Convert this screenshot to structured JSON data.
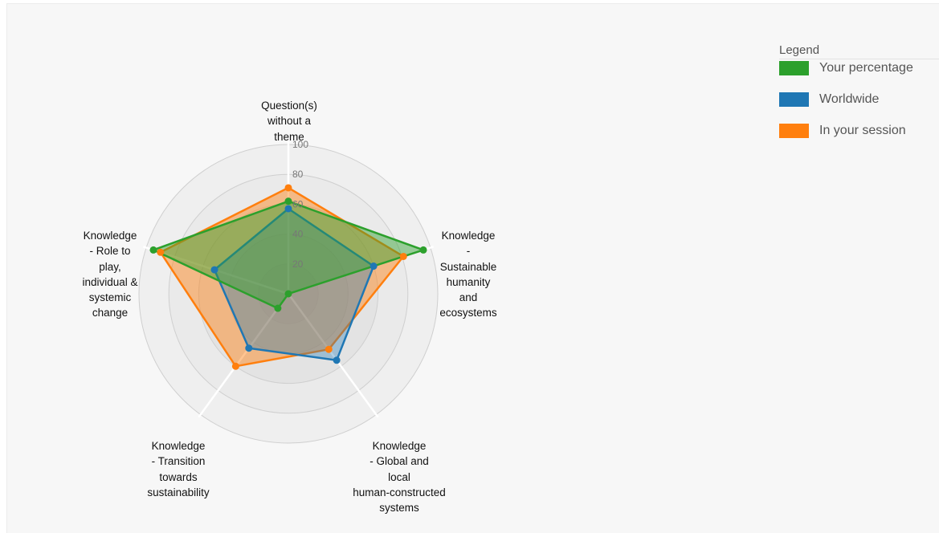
{
  "chart_data": {
    "type": "radar",
    "axes": [
      [
        "Question(s)",
        "without a",
        "theme"
      ],
      [
        "Knowledge",
        "-",
        "Sustainable",
        "humanity",
        "and",
        "ecosystems"
      ],
      [
        "Knowledge",
        "- Global and",
        "local",
        "human-constructed",
        "systems"
      ],
      [
        "Knowledge",
        "- Transition",
        "towards",
        "sustainability"
      ],
      [
        "Knowledge",
        "- Role to",
        "play,",
        "individual &",
        "systemic",
        "change"
      ]
    ],
    "rlim": [
      0,
      100
    ],
    "ticks": [
      "20",
      "40",
      "60",
      "80",
      "100"
    ],
    "series": [
      {
        "name": "Your percentage",
        "values": [
          62,
          95,
          0,
          12,
          95
        ]
      },
      {
        "name": "Worldwide",
        "values": [
          57,
          60,
          55,
          45,
          52
        ]
      },
      {
        "name": "In your session",
        "values": [
          71,
          81,
          46,
          60,
          90
        ]
      }
    ],
    "legend_position": "right"
  },
  "legend": {
    "title": "Legend",
    "items": [
      {
        "label": "Your percentage",
        "color": "#2ca02c"
      },
      {
        "label": "Worldwide",
        "color": "#1f77b4"
      },
      {
        "label": "In your session",
        "color": "#ff7f0e"
      }
    ]
  }
}
